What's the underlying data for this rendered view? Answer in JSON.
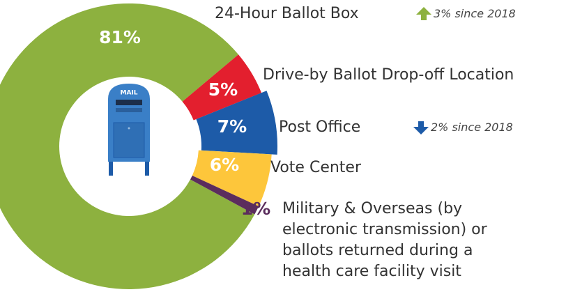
{
  "chart_data": {
    "type": "pie",
    "categories": [
      "24-Hour Ballot Box",
      "Drive-by Ballot Drop-off Location",
      "Post Office",
      "Vote Center",
      "Military & Overseas (by electronic transmission) or ballots returned during a health care facility visit"
    ],
    "values": [
      81,
      5,
      7,
      6,
      1
    ],
    "value_labels": [
      "81%",
      "5%",
      "7%",
      "6%",
      "1%"
    ],
    "colors": [
      "#8db13f",
      "#e31f2e",
      "#1d5ba8",
      "#fdc63b",
      "#5b2d5d"
    ],
    "center_icon_label": "MAIL",
    "annotations": [
      {
        "category": 0,
        "text": "3% since 2018",
        "direction": "up",
        "color": "#8db13f"
      },
      {
        "category": 2,
        "text": "2% since 2018",
        "direction": "down",
        "color": "#1d5ba8"
      }
    ]
  }
}
